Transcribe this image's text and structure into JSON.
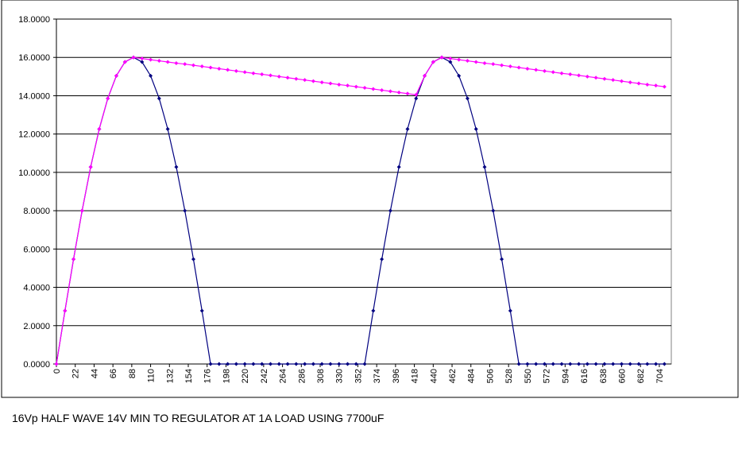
{
  "chart_data": {
    "type": "line",
    "caption": "16Vp HALF WAVE 14V MIN TO REGULATOR AT 1A LOAD USING 7700uF",
    "x": [
      0,
      10,
      20,
      30,
      40,
      50,
      60,
      70,
      80,
      90,
      100,
      110,
      120,
      130,
      140,
      150,
      160,
      170,
      180,
      190,
      200,
      210,
      220,
      230,
      240,
      250,
      260,
      270,
      280,
      290,
      300,
      310,
      320,
      330,
      340,
      350,
      360,
      370,
      380,
      390,
      400,
      410,
      420,
      430,
      440,
      450,
      460,
      470,
      480,
      490,
      500,
      510,
      520,
      530,
      540,
      550,
      560,
      570,
      580,
      590,
      600,
      610,
      620,
      630,
      640,
      650,
      660,
      670,
      680,
      690,
      700,
      710
    ],
    "series": [
      {
        "color": "#000080",
        "values": [
          0,
          2.78,
          5.47,
          8,
          10.28,
          12.26,
          13.86,
          15.04,
          15.76,
          16,
          15.76,
          15.04,
          13.86,
          12.26,
          10.28,
          8,
          5.47,
          2.78,
          0,
          0,
          0,
          0,
          0,
          0,
          0,
          0,
          0,
          0,
          0,
          0,
          0,
          0,
          0,
          0,
          0,
          0,
          0,
          2.78,
          5.47,
          8,
          10.28,
          12.26,
          13.86,
          15.04,
          15.76,
          16,
          15.76,
          15.04,
          13.86,
          12.26,
          10.28,
          8,
          5.47,
          2.78,
          0,
          0,
          0,
          0,
          0,
          0,
          0,
          0,
          0,
          0,
          0,
          0,
          0,
          0,
          0,
          0,
          0,
          0
        ]
      },
      {
        "color": "#ff00ff",
        "values": [
          0,
          2.78,
          5.47,
          8,
          10.28,
          12.26,
          13.86,
          15.04,
          15.76,
          16,
          15.94,
          15.88,
          15.82,
          15.76,
          15.7,
          15.65,
          15.59,
          15.53,
          15.47,
          15.41,
          15.35,
          15.29,
          15.23,
          15.17,
          15.12,
          15.06,
          15.0,
          14.94,
          14.88,
          14.82,
          14.76,
          14.7,
          14.64,
          14.58,
          14.53,
          14.47,
          14.41,
          14.35,
          14.29,
          14.23,
          14.17,
          14.11,
          14.05,
          15.04,
          15.76,
          16,
          15.94,
          15.88,
          15.82,
          15.76,
          15.7,
          15.65,
          15.59,
          15.53,
          15.47,
          15.41,
          15.35,
          15.29,
          15.23,
          15.17,
          15.12,
          15.06,
          15.0,
          14.94,
          14.88,
          14.82,
          14.76,
          14.7,
          14.64,
          14.58,
          14.53,
          14.47
        ]
      }
    ],
    "xlim": [
      0,
      718
    ],
    "xticks": [
      0,
      22,
      44,
      66,
      88,
      110,
      132,
      154,
      176,
      198,
      220,
      242,
      264,
      286,
      308,
      330,
      352,
      374,
      396,
      418,
      440,
      462,
      484,
      506,
      528,
      550,
      572,
      594,
      616,
      638,
      660,
      682,
      704
    ],
    "ylim": [
      0,
      18
    ],
    "yticks": [
      {
        "value": 0,
        "label": "0.0000"
      },
      {
        "value": 2,
        "label": "2.0000"
      },
      {
        "value": 4,
        "label": "4.0000"
      },
      {
        "value": 6,
        "label": "6.0000"
      },
      {
        "value": 8,
        "label": "8.0000"
      },
      {
        "value": 10,
        "label": "10.0000"
      },
      {
        "value": 12,
        "label": "12.0000"
      },
      {
        "value": 14,
        "label": "14.0000"
      },
      {
        "value": 16,
        "label": "16.0000"
      },
      {
        "value": 18,
        "label": "18.0000"
      }
    ],
    "grid": true
  }
}
